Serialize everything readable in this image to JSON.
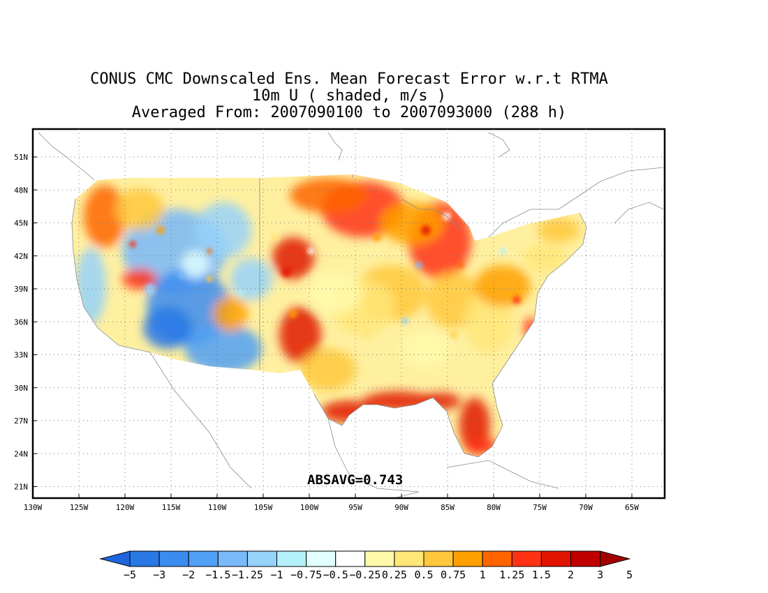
{
  "title": {
    "line1": "CONUS CMC Downscaled Ens. Mean Forecast Error w.r.t RTMA",
    "line2": "10m U ( shaded, m/s )",
    "line3": "Averaged From: 2007090100 to 2007093000 (288 h)"
  },
  "annotation": "ABSAVG=0.743",
  "axes": {
    "lat_labels": [
      "51N",
      "48N",
      "45N",
      "42N",
      "39N",
      "36N",
      "33N",
      "30N",
      "27N",
      "24N",
      "21N"
    ],
    "lon_labels": [
      "130W",
      "125W",
      "120W",
      "115W",
      "110W",
      "105W",
      "100W",
      "95W",
      "90W",
      "85W",
      "80W",
      "75W",
      "70W",
      "65W"
    ]
  },
  "colorbar": {
    "labels": [
      "-5",
      "-3",
      "-2",
      "-1.5",
      "-1.25",
      "-1",
      "-0.75",
      "-0.5",
      "-0.25",
      "0.25",
      "0.5",
      "0.75",
      "1",
      "1.25",
      "1.5",
      "2",
      "3",
      "5"
    ],
    "colors": [
      "#1e64dc",
      "#2878e6",
      "#3c8cf0",
      "#50a0f5",
      "#78b9fa",
      "#96d2fa",
      "#b4f0fa",
      "#e1ffff",
      "#ffffff",
      "#fffaaa",
      "#ffe678",
      "#ffc83c",
      "#ffa000",
      "#ff6400",
      "#ff3214",
      "#e11400",
      "#c00000",
      "#a50000"
    ]
  },
  "map_style": {
    "regions": [
      {
        "name": "pacific-northwest",
        "color": "#ffc83c"
      },
      {
        "name": "great-basin",
        "color": "#78b9fa"
      },
      {
        "name": "southwest",
        "color": "#3c8cf0"
      },
      {
        "name": "rockies",
        "color": "#96d2fa"
      },
      {
        "name": "northern-plains",
        "color": "#ff6400"
      },
      {
        "name": "central-plains",
        "color": "#ffe678"
      },
      {
        "name": "southern-plains",
        "color": "#ffa000"
      },
      {
        "name": "great-lakes",
        "color": "#ff3214"
      },
      {
        "name": "east",
        "color": "#fffaaa"
      },
      {
        "name": "gulf-coast",
        "color": "#e11400"
      },
      {
        "name": "florida",
        "color": "#ff3214"
      },
      {
        "name": "northeast",
        "color": "#ffe678"
      }
    ]
  }
}
